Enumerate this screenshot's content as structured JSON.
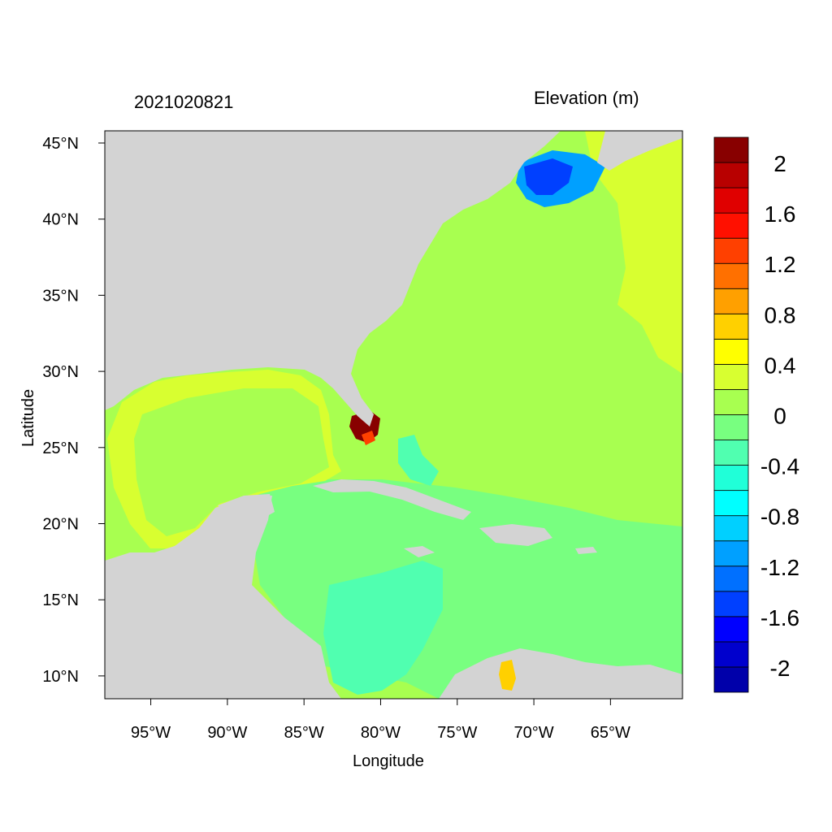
{
  "header": {
    "timestamp": "2021020821",
    "variable": "Elevation (m)"
  },
  "axes": {
    "x_title": "Longitude",
    "y_title": "Latitude",
    "x_ticks": [
      {
        "lon": -95,
        "label": "95°W"
      },
      {
        "lon": -90,
        "label": "90°W"
      },
      {
        "lon": -85,
        "label": "85°W"
      },
      {
        "lon": -80,
        "label": "80°W"
      },
      {
        "lon": -75,
        "label": "75°W"
      },
      {
        "lon": -70,
        "label": "70°W"
      },
      {
        "lon": -65,
        "label": "65°W"
      }
    ],
    "y_ticks": [
      {
        "lat": 45,
        "label": "45°N"
      },
      {
        "lat": 40,
        "label": "40°N"
      },
      {
        "lat": 35,
        "label": "35°N"
      },
      {
        "lat": 30,
        "label": "30°N"
      },
      {
        "lat": 25,
        "label": "25°N"
      },
      {
        "lat": 20,
        "label": "20°N"
      },
      {
        "lat": 15,
        "label": "15°N"
      },
      {
        "lat": 10,
        "label": "10°N"
      }
    ],
    "lon_range": [
      -98,
      -60.3
    ],
    "lat_range": [
      8.5,
      45.8
    ]
  },
  "colorbar": {
    "colors": [
      "#0000aa",
      "#0000cd",
      "#0000ff",
      "#0040ff",
      "#0070ff",
      "#00a0ff",
      "#00d0ff",
      "#00ffff",
      "#20ffd8",
      "#50ffb0",
      "#78ff80",
      "#a8ff50",
      "#d8ff30",
      "#ffff00",
      "#ffd000",
      "#ffa000",
      "#ff7000",
      "#ff4000",
      "#ff1000",
      "#e00000",
      "#b80000",
      "#880000"
    ],
    "labels": [
      {
        "value": 2,
        "label": "2"
      },
      {
        "value": 1.6,
        "label": "1.6"
      },
      {
        "value": 1.2,
        "label": "1.2"
      },
      {
        "value": 0.8,
        "label": "0.8"
      },
      {
        "value": 0.4,
        "label": "0.4"
      },
      {
        "value": 0,
        "label": "0"
      },
      {
        "value": -0.4,
        "label": "-0.4"
      },
      {
        "value": -0.8,
        "label": "-0.8"
      },
      {
        "value": -1.2,
        "label": "-1.2"
      },
      {
        "value": -1.6,
        "label": "-1.6"
      },
      {
        "value": -2,
        "label": "-2"
      }
    ]
  },
  "colors": {
    "land": "#d3d3d3",
    "atlantic": "#a8ff50",
    "gulf": "#d8ff30",
    "caribbean": "#78ff80",
    "caribbean_sw": "#50ffb0",
    "east_offshore": "#d8ff30",
    "gulf_of_maine": "#0070ff",
    "florida_surge": "#880000"
  }
}
